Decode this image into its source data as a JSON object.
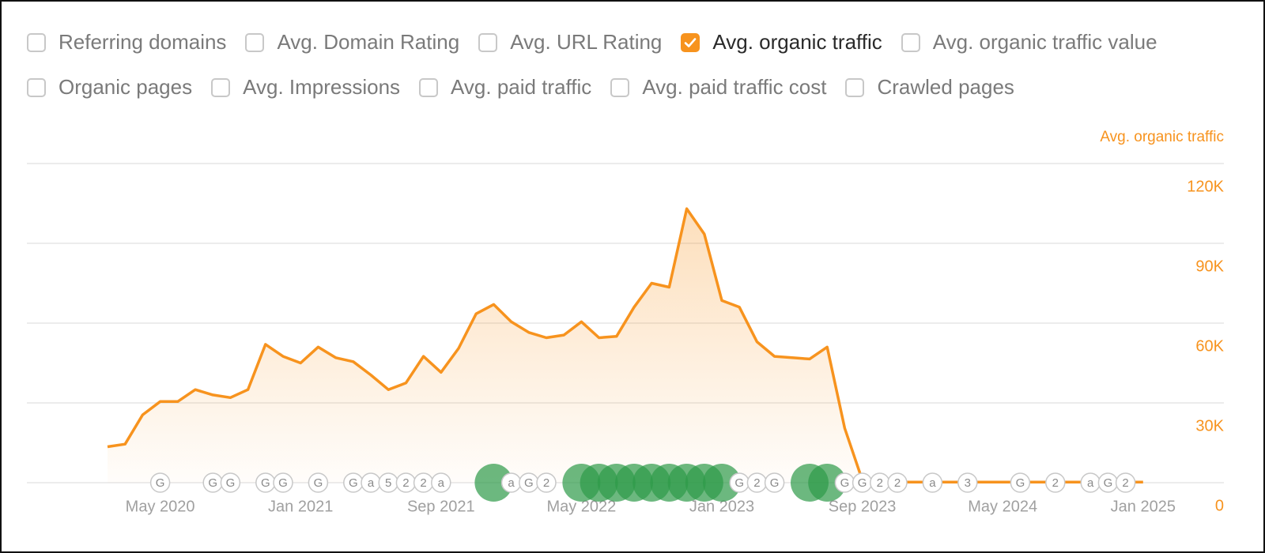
{
  "metric_rows": [
    [
      {
        "label": "Referring domains",
        "checked": false
      },
      {
        "label": "Avg. Domain Rating",
        "checked": false
      },
      {
        "label": "Avg. URL Rating",
        "checked": false
      },
      {
        "label": "Avg. organic traffic",
        "checked": true
      },
      {
        "label": "Avg. organic traffic value",
        "checked": false
      }
    ],
    [
      {
        "label": "Organic pages",
        "checked": false
      },
      {
        "label": "Avg. Impressions",
        "checked": false
      },
      {
        "label": "Avg. paid traffic",
        "checked": false
      },
      {
        "label": "Avg. paid traffic cost",
        "checked": false
      },
      {
        "label": "Crawled pages",
        "checked": false
      }
    ]
  ],
  "chart_data": {
    "type": "area",
    "y_axis_label": "Avg. organic traffic",
    "grid": true,
    "x": [
      "2020-02",
      "2020-03",
      "2020-04",
      "2020-05",
      "2020-06",
      "2020-07",
      "2020-08",
      "2020-09",
      "2020-10",
      "2020-11",
      "2020-12",
      "2021-01",
      "2021-02",
      "2021-03",
      "2021-04",
      "2021-05",
      "2021-06",
      "2021-07",
      "2021-08",
      "2021-09",
      "2021-10",
      "2021-11",
      "2021-12",
      "2022-01",
      "2022-02",
      "2022-03",
      "2022-04",
      "2022-05",
      "2022-06",
      "2022-07",
      "2022-08",
      "2022-09",
      "2022-10",
      "2022-11",
      "2022-12",
      "2023-01",
      "2023-02",
      "2023-03",
      "2023-04",
      "2023-05",
      "2023-06",
      "2023-07",
      "2023-08",
      "2023-09",
      "2023-10",
      "2023-11",
      "2023-12",
      "2024-01",
      "2024-02",
      "2024-03",
      "2024-04",
      "2024-05",
      "2024-06",
      "2024-07",
      "2024-08",
      "2024-09",
      "2024-10",
      "2024-11",
      "2024-12",
      "2025-01"
    ],
    "series": [
      {
        "name": "Avg. organic traffic",
        "color": "#f7931e",
        "values": [
          13500,
          14500,
          25500,
          30500,
          30500,
          35000,
          33000,
          32000,
          35000,
          52000,
          47500,
          45000,
          51000,
          47000,
          45500,
          40500,
          35000,
          37500,
          47500,
          41500,
          50500,
          63500,
          67000,
          60500,
          56500,
          54500,
          55500,
          60500,
          54500,
          55000,
          66000,
          75000,
          73500,
          103000,
          93500,
          68500,
          66000,
          53000,
          47500,
          47000,
          46500,
          51000,
          20500,
          1000,
          200,
          200,
          200,
          200,
          200,
          200,
          200,
          200,
          200,
          200,
          200,
          200,
          200,
          200,
          200,
          200
        ]
      }
    ],
    "ylim": [
      0,
      120000
    ],
    "yticks": [
      0,
      {
        "value": 30000,
        "label": "30K"
      },
      {
        "value": 60000,
        "label": "60K"
      },
      {
        "value": 90000,
        "label": "90K"
      },
      {
        "value": 120000,
        "label": "120K"
      }
    ],
    "xlim": [
      "2020-02",
      "2025-01"
    ],
    "xticks": [
      {
        "value": "2020-05",
        "label": "May 2020"
      },
      {
        "value": "2021-01",
        "label": "Jan 2021"
      },
      {
        "value": "2021-09",
        "label": "Sep 2021"
      },
      {
        "value": "2022-05",
        "label": "May 2022"
      },
      {
        "value": "2023-01",
        "label": "Jan 2023"
      },
      {
        "value": "2023-09",
        "label": "Sep 2023"
      },
      {
        "value": "2024-05",
        "label": "May 2024"
      },
      {
        "value": "2025-01",
        "label": "Jan 2025"
      }
    ],
    "major_events": [
      "2021-12",
      "2022-05",
      "2022-06",
      "2022-07",
      "2022-08",
      "2022-09",
      "2022-10",
      "2022-11",
      "2022-12",
      "2023-01",
      "2023-06",
      "2023-07"
    ],
    "events": [
      {
        "date": "2020-05",
        "label": "G"
      },
      {
        "date": "2020-08",
        "label": "G"
      },
      {
        "date": "2020-09",
        "label": "G"
      },
      {
        "date": "2020-11",
        "label": "G"
      },
      {
        "date": "2020-12",
        "label": "G"
      },
      {
        "date": "2021-02",
        "label": "G"
      },
      {
        "date": "2021-04",
        "label": "G"
      },
      {
        "date": "2021-05",
        "label": "a"
      },
      {
        "date": "2021-06",
        "label": "5"
      },
      {
        "date": "2021-07",
        "label": "2"
      },
      {
        "date": "2021-08",
        "label": "2"
      },
      {
        "date": "2021-09",
        "label": "a"
      },
      {
        "date": "2022-01",
        "label": "a"
      },
      {
        "date": "2022-02",
        "label": "G"
      },
      {
        "date": "2022-03",
        "label": "2"
      },
      {
        "date": "2023-02",
        "label": "G"
      },
      {
        "date": "2023-03",
        "label": "2"
      },
      {
        "date": "2023-04",
        "label": "G"
      },
      {
        "date": "2023-08",
        "label": "G"
      },
      {
        "date": "2023-09",
        "label": "G"
      },
      {
        "date": "2023-10",
        "label": "2"
      },
      {
        "date": "2023-11",
        "label": "2"
      },
      {
        "date": "2024-01",
        "label": "a"
      },
      {
        "date": "2024-03",
        "label": "3"
      },
      {
        "date": "2024-06",
        "label": "G"
      },
      {
        "date": "2024-08",
        "label": "2"
      },
      {
        "date": "2024-10",
        "label": "a"
      },
      {
        "date": "2024-11",
        "label": "G"
      },
      {
        "date": "2024-12",
        "label": "2"
      }
    ]
  }
}
